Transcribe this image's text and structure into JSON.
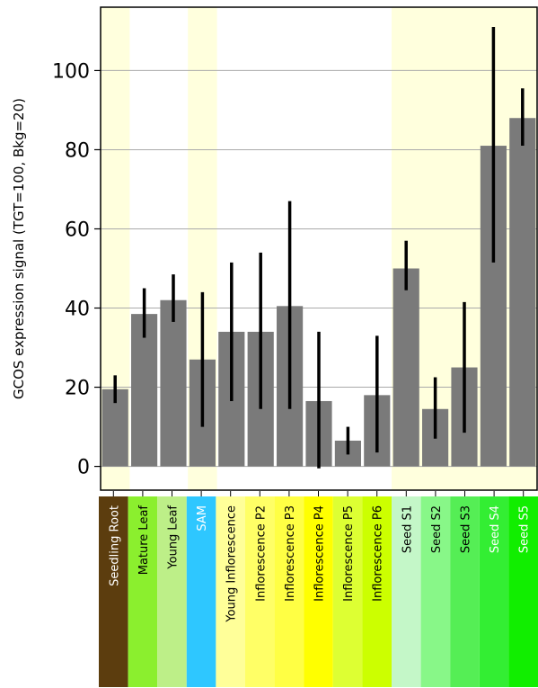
{
  "chart_data": {
    "type": "bar",
    "ylabel": "GCOS expression signal (TGT=100, Bkg=20)",
    "ylim": [
      -6,
      116
    ],
    "yticks": [
      0,
      20,
      40,
      60,
      80,
      100
    ],
    "grid": true,
    "categories": [
      "Seedling Root",
      "Mature Leaf",
      "Young Leaf",
      "SAM",
      "Young Inflorescence",
      "Inflorescence P2",
      "Inflorescence P3",
      "Inflorescence P4",
      "Inflorescence P5",
      "Inflorescence P6",
      "Seed S1",
      "Seed S2",
      "Seed S3",
      "Seed S4",
      "Seed S5"
    ],
    "values": [
      19.5,
      38.5,
      42,
      27,
      34,
      34,
      40.5,
      16.5,
      6.5,
      18,
      50,
      14.5,
      25,
      81,
      88
    ],
    "error_low": [
      16,
      32.5,
      36.5,
      10,
      16.5,
      14.5,
      14.5,
      -0.5,
      3,
      3.5,
      44.5,
      7,
      8.5,
      51.5,
      81
    ],
    "error_high": [
      23,
      45,
      48.5,
      44,
      51.5,
      54,
      67,
      34,
      10,
      33,
      57,
      22.5,
      41.5,
      111,
      95.5
    ],
    "bar_color": "#7a7a7a",
    "error_color": "#000000",
    "background_bands": [
      {
        "from": 0,
        "to": 0,
        "color": "#ffffdd"
      },
      {
        "from": 3,
        "to": 3,
        "color": "#ffffdd"
      },
      {
        "from": 10,
        "to": 14,
        "color": "#ffffdd"
      }
    ],
    "label_colors": [
      "#5c3d0e",
      "#8bef2e",
      "#bdef88",
      "#2ec7ff",
      "#ffff99",
      "#ffff66",
      "#ffff44",
      "#ffff00",
      "#ddff33",
      "#ccff00",
      "#c4f7c8",
      "#88f788",
      "#55ee55",
      "#33ee33",
      "#11ee00"
    ],
    "label_text_colors": [
      "#ffffff",
      "#000000",
      "#000000",
      "#ffffff",
      "#000000",
      "#000000",
      "#000000",
      "#000000",
      "#000000",
      "#000000",
      "#000000",
      "#000000",
      "#000000",
      "#ffffff",
      "#ffffff"
    ]
  }
}
